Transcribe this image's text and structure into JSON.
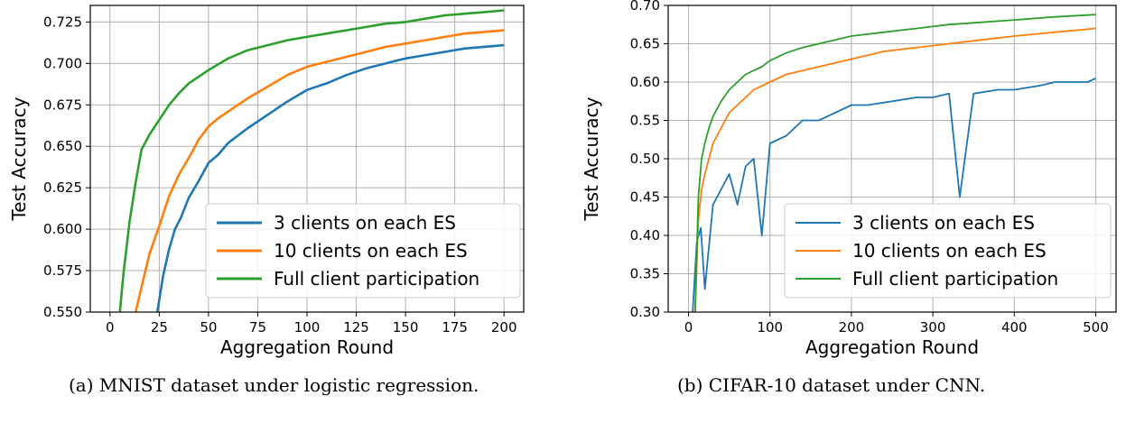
{
  "captions": {
    "a": "(a) MNIST dataset under logistic regression.",
    "b": "(b) CIFAR-10 dataset under CNN."
  },
  "chart_data": [
    {
      "type": "line",
      "title": "",
      "xlabel": "Aggregation Round",
      "ylabel": "Test Accuracy",
      "xlim": [
        -10,
        210
      ],
      "ylim": [
        0.55,
        0.735
      ],
      "xticks": [
        0,
        25,
        50,
        75,
        100,
        125,
        150,
        175,
        200
      ],
      "yticks": [
        0.55,
        0.575,
        0.6,
        0.625,
        0.65,
        0.675,
        0.7,
        0.725
      ],
      "ytick_labels": [
        "0.550",
        "0.575",
        "0.600",
        "0.625",
        "0.650",
        "0.675",
        "0.700",
        "0.725"
      ],
      "grid": true,
      "legend_position": "lower-right",
      "series": [
        {
          "name": "3 clients on each ES",
          "color": "#1f77b4",
          "x": [
            24,
            27,
            30,
            33,
            36,
            40,
            45,
            50,
            55,
            60,
            70,
            80,
            90,
            100,
            110,
            120,
            130,
            140,
            150,
            160,
            170,
            180,
            190,
            200
          ],
          "y": [
            0.55,
            0.572,
            0.588,
            0.6,
            0.607,
            0.619,
            0.629,
            0.64,
            0.645,
            0.652,
            0.661,
            0.669,
            0.677,
            0.684,
            0.688,
            0.693,
            0.697,
            0.7,
            0.703,
            0.705,
            0.707,
            0.709,
            0.71,
            0.711
          ]
        },
        {
          "name": "10 clients on each ES",
          "color": "#ff7f0e",
          "x": [
            13,
            16,
            20,
            25,
            30,
            35,
            40,
            45,
            50,
            55,
            60,
            70,
            80,
            90,
            100,
            110,
            120,
            130,
            140,
            150,
            160,
            170,
            180,
            190,
            200
          ],
          "y": [
            0.55,
            0.565,
            0.585,
            0.602,
            0.62,
            0.633,
            0.643,
            0.654,
            0.662,
            0.667,
            0.671,
            0.679,
            0.686,
            0.693,
            0.698,
            0.701,
            0.704,
            0.707,
            0.71,
            0.712,
            0.714,
            0.716,
            0.718,
            0.719,
            0.72
          ]
        },
        {
          "name": "Full client participation",
          "color": "#2ca02c",
          "x": [
            5,
            7,
            10,
            13,
            16,
            20,
            25,
            30,
            35,
            40,
            50,
            60,
            70,
            80,
            90,
            100,
            110,
            120,
            130,
            140,
            150,
            160,
            170,
            180,
            190,
            200
          ],
          "y": [
            0.55,
            0.575,
            0.605,
            0.628,
            0.648,
            0.657,
            0.666,
            0.675,
            0.682,
            0.688,
            0.696,
            0.703,
            0.708,
            0.711,
            0.714,
            0.716,
            0.718,
            0.72,
            0.722,
            0.724,
            0.725,
            0.727,
            0.729,
            0.73,
            0.731,
            0.732
          ]
        }
      ]
    },
    {
      "type": "line",
      "title": "",
      "xlabel": "Aggregation Round",
      "ylabel": "Test Accuracy",
      "xlim": [
        -25,
        525
      ],
      "ylim": [
        0.3,
        0.7
      ],
      "xticks": [
        0,
        100,
        200,
        300,
        400,
        500
      ],
      "yticks": [
        0.3,
        0.35,
        0.4,
        0.45,
        0.5,
        0.55,
        0.6,
        0.65,
        0.7
      ],
      "ytick_labels": [
        "0.30",
        "0.35",
        "0.40",
        "0.45",
        "0.50",
        "0.55",
        "0.60",
        "0.65",
        "0.70"
      ],
      "grid": true,
      "legend_position": "lower-right",
      "series": [
        {
          "name": "3 clients on each ES",
          "color": "#1f77b4",
          "x": [
            5,
            10,
            15,
            20,
            30,
            40,
            50,
            60,
            70,
            80,
            90,
            100,
            120,
            140,
            160,
            180,
            200,
            220,
            250,
            280,
            300,
            320,
            333,
            350,
            380,
            400,
            430,
            450,
            470,
            490,
            500
          ],
          "y": [
            0.3,
            0.39,
            0.41,
            0.33,
            0.44,
            0.46,
            0.48,
            0.44,
            0.49,
            0.5,
            0.4,
            0.52,
            0.53,
            0.55,
            0.55,
            0.56,
            0.57,
            0.57,
            0.575,
            0.58,
            0.58,
            0.585,
            0.45,
            0.585,
            0.59,
            0.59,
            0.595,
            0.6,
            0.6,
            0.6,
            0.605
          ]
        },
        {
          "name": "10 clients on each ES",
          "color": "#ff7f0e",
          "x": [
            8,
            12,
            16,
            20,
            25,
            30,
            40,
            50,
            60,
            70,
            80,
            90,
            100,
            120,
            140,
            160,
            180,
            200,
            240,
            280,
            320,
            360,
            400,
            450,
            500
          ],
          "y": [
            0.3,
            0.42,
            0.46,
            0.48,
            0.5,
            0.52,
            0.54,
            0.56,
            0.57,
            0.58,
            0.59,
            0.595,
            0.6,
            0.61,
            0.615,
            0.62,
            0.625,
            0.63,
            0.64,
            0.645,
            0.65,
            0.655,
            0.66,
            0.665,
            0.67
          ]
        },
        {
          "name": "Full client participation",
          "color": "#2ca02c",
          "x": [
            8,
            12,
            16,
            20,
            25,
            30,
            40,
            50,
            60,
            70,
            80,
            90,
            100,
            120,
            140,
            160,
            180,
            200,
            240,
            280,
            320,
            360,
            400,
            450,
            500
          ],
          "y": [
            0.3,
            0.45,
            0.5,
            0.52,
            0.54,
            0.555,
            0.575,
            0.59,
            0.6,
            0.61,
            0.615,
            0.62,
            0.628,
            0.638,
            0.645,
            0.65,
            0.655,
            0.66,
            0.665,
            0.67,
            0.675,
            0.678,
            0.681,
            0.685,
            0.688
          ]
        }
      ]
    }
  ]
}
